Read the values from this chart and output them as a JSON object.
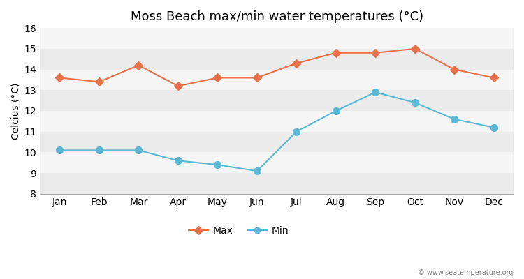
{
  "months": [
    "Jan",
    "Feb",
    "Mar",
    "Apr",
    "May",
    "Jun",
    "Jul",
    "Aug",
    "Sep",
    "Oct",
    "Nov",
    "Dec"
  ],
  "max_temps": [
    13.6,
    13.4,
    14.2,
    13.2,
    13.6,
    13.6,
    14.3,
    14.8,
    14.8,
    15.0,
    14.0,
    13.6
  ],
  "min_temps": [
    10.1,
    10.1,
    10.1,
    9.6,
    9.4,
    9.1,
    11.0,
    12.0,
    12.9,
    12.4,
    11.6,
    11.2
  ],
  "max_color": "#e8714a",
  "min_color": "#5bb8d4",
  "title": "Moss Beach max/min water temperatures (°C)",
  "ylabel": "Celcius (°C)",
  "ylim": [
    8,
    16
  ],
  "yticks": [
    8,
    9,
    10,
    11,
    12,
    13,
    14,
    15,
    16
  ],
  "bg_color": "#ffffff",
  "plot_bg_light": "#f5f5f5",
  "plot_bg_dark": "#ebebeb",
  "watermark": "© www.seatemperature.org",
  "legend_max": "Max",
  "legend_min": "Min",
  "title_fontsize": 13,
  "label_fontsize": 10,
  "tick_fontsize": 10
}
